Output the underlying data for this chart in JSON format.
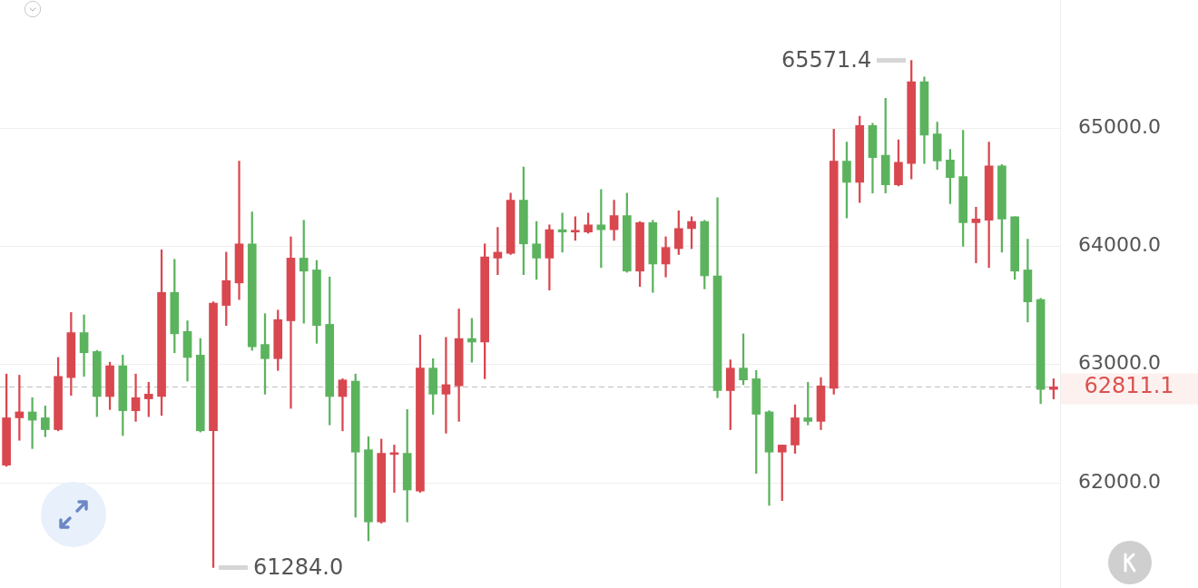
{
  "chart_data": {
    "type": "candlestick",
    "categories": [
      null,
      null,
      null,
      null,
      null,
      null,
      null,
      null,
      null,
      null,
      null,
      null,
      null,
      null,
      null,
      null,
      null,
      null,
      null,
      null,
      null,
      null,
      null,
      null,
      null,
      null,
      null,
      null,
      null,
      null,
      null,
      null,
      null,
      null,
      null,
      null,
      null,
      null,
      null,
      null,
      null,
      null,
      null,
      null,
      null,
      null,
      null,
      null,
      null,
      null,
      null,
      null,
      null,
      null,
      null,
      null,
      null,
      null,
      null,
      null,
      null,
      null,
      null,
      null,
      null,
      null,
      null,
      null,
      null,
      null,
      null,
      null,
      null,
      null,
      null,
      null,
      null,
      null,
      null,
      null,
      null,
      null
    ],
    "ohlc": [
      [
        62150,
        62920,
        62140,
        62550
      ],
      [
        62550,
        62910,
        62360,
        62600
      ],
      [
        62600,
        62720,
        62290,
        62530
      ],
      [
        62550,
        62650,
        62390,
        62450
      ],
      [
        62450,
        63060,
        62440,
        62900
      ],
      [
        62890,
        63440,
        62740,
        63270
      ],
      [
        63270,
        63420,
        62900,
        63100
      ],
      [
        63110,
        63120,
        62560,
        62730
      ],
      [
        62730,
        63020,
        62620,
        62990
      ],
      [
        62990,
        63080,
        62400,
        62610
      ],
      [
        62610,
        62920,
        62520,
        62720
      ],
      [
        62710,
        62850,
        62560,
        62750
      ],
      [
        62730,
        63970,
        62570,
        63610
      ],
      [
        63610,
        63890,
        63100,
        63260
      ],
      [
        63280,
        63370,
        62860,
        63060
      ],
      [
        63080,
        63220,
        62430,
        62440
      ],
      [
        62440,
        63530,
        61284.0,
        63520
      ],
      [
        63500,
        63950,
        63330,
        63710
      ],
      [
        63690,
        64720,
        63550,
        64020
      ],
      [
        64020,
        64290,
        63120,
        63150
      ],
      [
        63170,
        63430,
        62750,
        63050
      ],
      [
        63050,
        63460,
        62950,
        63380
      ],
      [
        63370,
        64080,
        62630,
        63900
      ],
      [
        63900,
        64220,
        63350,
        63790
      ],
      [
        63800,
        63880,
        63180,
        63330
      ],
      [
        63340,
        63740,
        62490,
        62730
      ],
      [
        62730,
        62880,
        62440,
        62870
      ],
      [
        62860,
        62920,
        61710,
        62260
      ],
      [
        62280,
        62390,
        61510,
        61670
      ],
      [
        61670,
        62370,
        61660,
        62250
      ],
      [
        62240,
        62320,
        61920,
        62250
      ],
      [
        62250,
        62620,
        61670,
        61940
      ],
      [
        61930,
        63250,
        61920,
        62970
      ],
      [
        62970,
        63050,
        62580,
        62750
      ],
      [
        62750,
        63230,
        62420,
        62830
      ],
      [
        62820,
        63470,
        62520,
        63220
      ],
      [
        63220,
        63390,
        63020,
        63190
      ],
      [
        63190,
        64020,
        62880,
        63910
      ],
      [
        63900,
        64160,
        63760,
        63950
      ],
      [
        63940,
        64450,
        63930,
        64390
      ],
      [
        64390,
        64670,
        63760,
        64020
      ],
      [
        64020,
        64210,
        63720,
        63900
      ],
      [
        63900,
        64180,
        63630,
        64140
      ],
      [
        64140,
        64280,
        63950,
        64120
      ],
      [
        64120,
        64250,
        64050,
        64130
      ],
      [
        64120,
        64280,
        64110,
        64180
      ],
      [
        64180,
        64480,
        63820,
        64140
      ],
      [
        64140,
        64390,
        64050,
        64260
      ],
      [
        64260,
        64450,
        63780,
        63790
      ],
      [
        63790,
        64210,
        63660,
        64200
      ],
      [
        64200,
        64220,
        63610,
        63850
      ],
      [
        63850,
        64080,
        63740,
        63990
      ],
      [
        63980,
        64300,
        63930,
        64150
      ],
      [
        64150,
        64250,
        63980,
        64210
      ],
      [
        64210,
        64220,
        63640,
        63750
      ],
      [
        63750,
        64410,
        62720,
        62780
      ],
      [
        62780,
        63040,
        62450,
        62970
      ],
      [
        62970,
        63260,
        62830,
        62870
      ],
      [
        62880,
        62950,
        62080,
        62580
      ],
      [
        62600,
        62610,
        61810,
        62260
      ],
      [
        62260,
        62320,
        61850,
        62320
      ],
      [
        62320,
        62660,
        62250,
        62550
      ],
      [
        62550,
        62850,
        62490,
        62520
      ],
      [
        62520,
        62890,
        62450,
        62820
      ],
      [
        62800,
        64990,
        62750,
        64720
      ],
      [
        64720,
        64880,
        64240,
        64540
      ],
      [
        64540,
        65100,
        64370,
        65020
      ],
      [
        65020,
        65040,
        64450,
        64750
      ],
      [
        64770,
        65250,
        64450,
        64520
      ],
      [
        64520,
        64900,
        64510,
        64710
      ],
      [
        64700,
        65571.4,
        64570,
        65390
      ],
      [
        65390,
        65430,
        64700,
        64940
      ],
      [
        64950,
        65050,
        64650,
        64720
      ],
      [
        64730,
        64820,
        64360,
        64580
      ],
      [
        64590,
        64980,
        64000,
        64200
      ],
      [
        64200,
        64330,
        63860,
        64230
      ],
      [
        64220,
        64880,
        63820,
        64680
      ],
      [
        64680,
        64690,
        63950,
        64230
      ],
      [
        64250,
        64250,
        63720,
        63790
      ],
      [
        63800,
        64060,
        63360,
        63530
      ],
      [
        63550,
        63560,
        62670,
        62790
      ],
      [
        62790,
        62880,
        62710,
        62811.1
      ]
    ],
    "ylim": [
      61090,
      66080
    ],
    "yticks": [
      {
        "value": 62000,
        "label": "62000.0"
      },
      {
        "value": 63000,
        "label": "63000.0"
      },
      {
        "value": 64000,
        "label": "64000.0"
      },
      {
        "value": 65000,
        "label": "65000.0"
      }
    ],
    "tick_labels": "y",
    "grid": "y",
    "ref_lines": [
      {
        "axis": "y",
        "value": 62811.1,
        "label": "62811.1",
        "color": "#bbbbbb",
        "line_style": "dashed"
      }
    ],
    "annotations": [
      "65571.4",
      "61284.0"
    ]
  }
}
